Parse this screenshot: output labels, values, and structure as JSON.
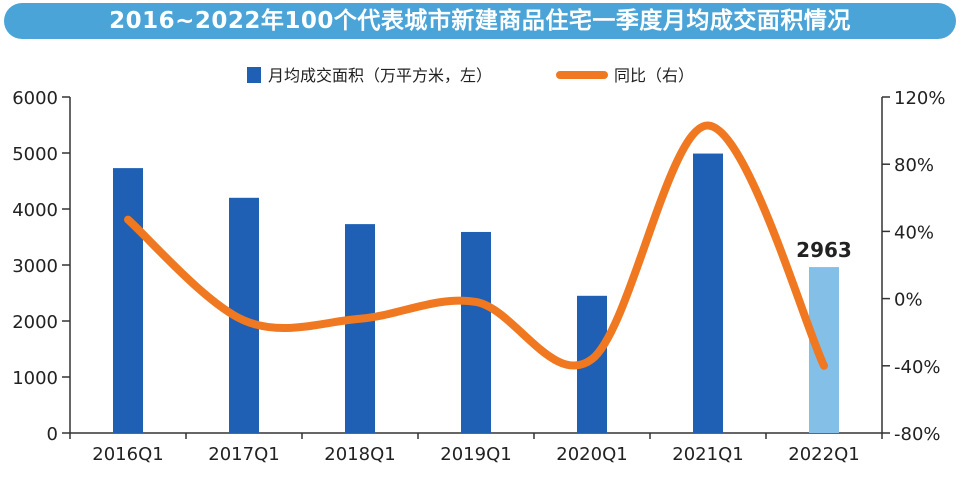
{
  "title": "2016~2022年100个代表城市新建商品住宅一季度月均成交面积情况",
  "colors": {
    "title_bg": "#4aa4d8",
    "bar": "#1f5fb4",
    "bar_highlight": "#84bfe8",
    "line": "#f07820"
  },
  "chart_data": {
    "type": "bar",
    "categories": [
      "2016Q1",
      "2017Q1",
      "2018Q1",
      "2019Q1",
      "2020Q1",
      "2021Q1",
      "2022Q1"
    ],
    "series": [
      {
        "name": "月均成交面积（万平方米，左）",
        "type": "bar",
        "axis": "left",
        "values": [
          4730,
          4200,
          3730,
          3590,
          2450,
          4990,
          2963
        ]
      },
      {
        "name": "同比（右）",
        "type": "line",
        "axis": "right",
        "values": [
          47,
          -13,
          -12,
          -2,
          -36,
          103,
          -40
        ]
      }
    ],
    "y_left": {
      "ylim": [
        0,
        6000
      ],
      "ticks": [
        "0",
        "1000",
        "2000",
        "3000",
        "4000",
        "5000",
        "6000"
      ]
    },
    "y_right": {
      "ylim": [
        -80,
        120
      ],
      "ticks": [
        "-80%",
        "-40%",
        "0%",
        "40%",
        "80%",
        "120%"
      ]
    },
    "data_labels": [
      {
        "category": "2022Q1",
        "text": "2963"
      }
    ],
    "highlight_category": "2022Q1",
    "legend": {
      "position": "top-center"
    },
    "grid": false
  }
}
